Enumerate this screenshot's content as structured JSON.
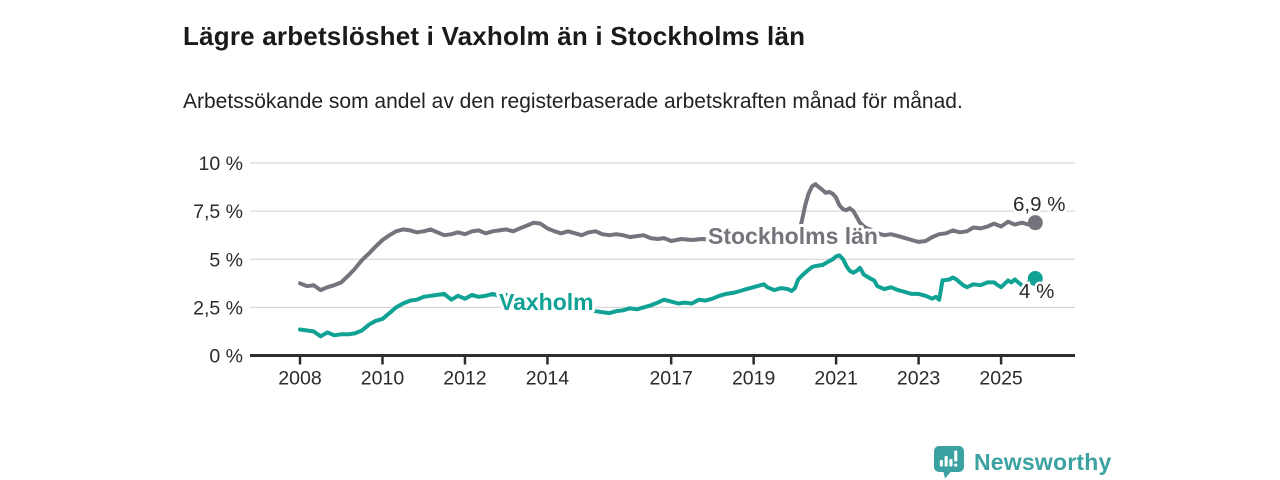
{
  "header": {
    "title": "Lägre arbetslöshet i Vaxholm än i Stockholms län",
    "subtitle": "Arbetssökande som andel av den registerbaserade arbetskraften månad för månad."
  },
  "footer": {
    "brand": "Newsworthy"
  },
  "colors": {
    "stockholm_line": "#74747d",
    "vaxholm_line": "#10a294",
    "axis": "#2e2e2e",
    "grid": "#d8d8d8",
    "tick_text": "#2b2b2b",
    "annotation_text": "#2b2b2b",
    "brand_teal": "#3ba1a1"
  },
  "chart_data": {
    "type": "line",
    "title": "Lägre arbetslöshet i Vaxholm än i Stockholms län",
    "subtitle": "Arbetssökande som andel av den registerbaserade arbetskraften månad för månad.",
    "xlabel": "",
    "ylabel": "",
    "grid": "horizontal",
    "legend_position": "inline-labels",
    "ylim": [
      0,
      10
    ],
    "xlim_data": [
      2008.0,
      2025.83
    ],
    "y_ticks": [
      {
        "v": 0,
        "label": "0 %"
      },
      {
        "v": 2.5,
        "label": "2,5 %"
      },
      {
        "v": 5,
        "label": "5 %"
      },
      {
        "v": 7.5,
        "label": "7,5 %"
      },
      {
        "v": 10,
        "label": "10 %"
      }
    ],
    "x_ticks": [
      {
        "v": 2008,
        "label": "2008"
      },
      {
        "v": 2010,
        "label": "2010"
      },
      {
        "v": 2012,
        "label": "2012"
      },
      {
        "v": 2014,
        "label": "2014"
      },
      {
        "v": 2017,
        "label": "2017"
      },
      {
        "v": 2019,
        "label": "2019"
      },
      {
        "v": 2021,
        "label": "2021"
      },
      {
        "v": 2023,
        "label": "2023"
      },
      {
        "v": 2025,
        "label": "2025"
      }
    ],
    "series": [
      {
        "name": "Stockholms län",
        "color": "#74747d",
        "end_label": "6,9 %",
        "last_value": 6.9,
        "points": [
          [
            2008.0,
            3.75
          ],
          [
            2008.17,
            3.6
          ],
          [
            2008.33,
            3.65
          ],
          [
            2008.5,
            3.4
          ],
          [
            2008.67,
            3.55
          ],
          [
            2008.83,
            3.65
          ],
          [
            2009.0,
            3.8
          ],
          [
            2009.17,
            4.15
          ],
          [
            2009.33,
            4.5
          ],
          [
            2009.5,
            4.95
          ],
          [
            2009.67,
            5.3
          ],
          [
            2009.83,
            5.65
          ],
          [
            2010.0,
            6.0
          ],
          [
            2010.17,
            6.25
          ],
          [
            2010.33,
            6.45
          ],
          [
            2010.5,
            6.55
          ],
          [
            2010.67,
            6.5
          ],
          [
            2010.83,
            6.4
          ],
          [
            2011.0,
            6.45
          ],
          [
            2011.17,
            6.55
          ],
          [
            2011.33,
            6.4
          ],
          [
            2011.5,
            6.25
          ],
          [
            2011.67,
            6.3
          ],
          [
            2011.83,
            6.4
          ],
          [
            2012.0,
            6.3
          ],
          [
            2012.17,
            6.45
          ],
          [
            2012.33,
            6.5
          ],
          [
            2012.5,
            6.35
          ],
          [
            2012.67,
            6.45
          ],
          [
            2012.83,
            6.5
          ],
          [
            2013.0,
            6.55
          ],
          [
            2013.17,
            6.45
          ],
          [
            2013.33,
            6.6
          ],
          [
            2013.5,
            6.75
          ],
          [
            2013.67,
            6.9
          ],
          [
            2013.83,
            6.85
          ],
          [
            2014.0,
            6.6
          ],
          [
            2014.17,
            6.45
          ],
          [
            2014.33,
            6.35
          ],
          [
            2014.5,
            6.45
          ],
          [
            2014.67,
            6.35
          ],
          [
            2014.83,
            6.25
          ],
          [
            2015.0,
            6.4
          ],
          [
            2015.17,
            6.45
          ],
          [
            2015.33,
            6.3
          ],
          [
            2015.5,
            6.25
          ],
          [
            2015.67,
            6.3
          ],
          [
            2015.83,
            6.25
          ],
          [
            2016.0,
            6.15
          ],
          [
            2016.17,
            6.2
          ],
          [
            2016.33,
            6.25
          ],
          [
            2016.5,
            6.1
          ],
          [
            2016.67,
            6.05
          ],
          [
            2016.83,
            6.1
          ],
          [
            2017.0,
            5.95
          ],
          [
            2017.25,
            6.05
          ],
          [
            2017.5,
            6.0
          ],
          [
            2017.75,
            6.05
          ],
          [
            2018.0,
            6.0
          ],
          [
            2018.25,
            5.95
          ],
          [
            2018.5,
            6.0
          ],
          [
            2018.75,
            5.95
          ],
          [
            2019.0,
            5.9
          ],
          [
            2019.17,
            5.95
          ],
          [
            2019.33,
            5.9
          ],
          [
            2019.5,
            5.85
          ],
          [
            2019.67,
            5.9
          ],
          [
            2019.83,
            5.95
          ],
          [
            2020.0,
            6.1
          ],
          [
            2020.08,
            6.3
          ],
          [
            2020.17,
            7.0
          ],
          [
            2020.25,
            7.8
          ],
          [
            2020.33,
            8.4
          ],
          [
            2020.42,
            8.8
          ],
          [
            2020.5,
            8.9
          ],
          [
            2020.58,
            8.75
          ],
          [
            2020.67,
            8.6
          ],
          [
            2020.75,
            8.45
          ],
          [
            2020.83,
            8.5
          ],
          [
            2020.92,
            8.4
          ],
          [
            2021.0,
            8.2
          ],
          [
            2021.08,
            7.8
          ],
          [
            2021.17,
            7.6
          ],
          [
            2021.25,
            7.55
          ],
          [
            2021.33,
            7.65
          ],
          [
            2021.42,
            7.5
          ],
          [
            2021.5,
            7.2
          ],
          [
            2021.58,
            6.9
          ],
          [
            2021.67,
            6.7
          ],
          [
            2021.75,
            6.6
          ],
          [
            2021.83,
            6.55
          ],
          [
            2021.92,
            6.45
          ],
          [
            2022.0,
            6.35
          ],
          [
            2022.17,
            6.25
          ],
          [
            2022.33,
            6.3
          ],
          [
            2022.5,
            6.2
          ],
          [
            2022.67,
            6.1
          ],
          [
            2022.83,
            6.0
          ],
          [
            2023.0,
            5.9
          ],
          [
            2023.17,
            5.95
          ],
          [
            2023.33,
            6.15
          ],
          [
            2023.5,
            6.3
          ],
          [
            2023.67,
            6.35
          ],
          [
            2023.83,
            6.5
          ],
          [
            2024.0,
            6.4
          ],
          [
            2024.17,
            6.45
          ],
          [
            2024.33,
            6.65
          ],
          [
            2024.5,
            6.6
          ],
          [
            2024.67,
            6.7
          ],
          [
            2024.83,
            6.85
          ],
          [
            2025.0,
            6.7
          ],
          [
            2025.17,
            6.95
          ],
          [
            2025.33,
            6.8
          ],
          [
            2025.5,
            6.9
          ],
          [
            2025.67,
            6.8
          ],
          [
            2025.83,
            6.9
          ]
        ]
      },
      {
        "name": "Vaxholm",
        "color": "#10a294",
        "end_label": "4 %",
        "last_value": 4.0,
        "points": [
          [
            2008.0,
            1.35
          ],
          [
            2008.17,
            1.3
          ],
          [
            2008.33,
            1.25
          ],
          [
            2008.5,
            1.0
          ],
          [
            2008.67,
            1.2
          ],
          [
            2008.83,
            1.05
          ],
          [
            2009.0,
            1.1
          ],
          [
            2009.17,
            1.1
          ],
          [
            2009.33,
            1.15
          ],
          [
            2009.5,
            1.3
          ],
          [
            2009.67,
            1.6
          ],
          [
            2009.83,
            1.8
          ],
          [
            2010.0,
            1.9
          ],
          [
            2010.17,
            2.2
          ],
          [
            2010.33,
            2.5
          ],
          [
            2010.5,
            2.7
          ],
          [
            2010.67,
            2.85
          ],
          [
            2010.83,
            2.9
          ],
          [
            2011.0,
            3.05
          ],
          [
            2011.17,
            3.1
          ],
          [
            2011.33,
            3.15
          ],
          [
            2011.5,
            3.2
          ],
          [
            2011.67,
            2.9
          ],
          [
            2011.83,
            3.1
          ],
          [
            2012.0,
            2.95
          ],
          [
            2012.17,
            3.15
          ],
          [
            2012.33,
            3.05
          ],
          [
            2012.5,
            3.1
          ],
          [
            2012.67,
            3.2
          ],
          [
            2012.83,
            3.1
          ],
          [
            2013.0,
            3.15
          ],
          [
            2013.17,
            3.05
          ],
          [
            2013.33,
            2.9
          ],
          [
            2013.5,
            2.7
          ],
          [
            2013.67,
            2.6
          ],
          [
            2013.83,
            2.7
          ],
          [
            2014.0,
            2.6
          ],
          [
            2014.17,
            2.5
          ],
          [
            2014.33,
            2.45
          ],
          [
            2014.5,
            2.4
          ],
          [
            2014.67,
            2.45
          ],
          [
            2014.83,
            2.35
          ],
          [
            2015.0,
            2.4
          ],
          [
            2015.17,
            2.3
          ],
          [
            2015.33,
            2.25
          ],
          [
            2015.5,
            2.2
          ],
          [
            2015.67,
            2.3
          ],
          [
            2015.83,
            2.35
          ],
          [
            2016.0,
            2.45
          ],
          [
            2016.17,
            2.4
          ],
          [
            2016.33,
            2.5
          ],
          [
            2016.5,
            2.6
          ],
          [
            2016.67,
            2.75
          ],
          [
            2016.83,
            2.9
          ],
          [
            2017.0,
            2.8
          ],
          [
            2017.17,
            2.7
          ],
          [
            2017.33,
            2.75
          ],
          [
            2017.5,
            2.7
          ],
          [
            2017.67,
            2.9
          ],
          [
            2017.83,
            2.85
          ],
          [
            2018.0,
            2.95
          ],
          [
            2018.17,
            3.1
          ],
          [
            2018.33,
            3.2
          ],
          [
            2018.5,
            3.25
          ],
          [
            2018.67,
            3.35
          ],
          [
            2018.83,
            3.45
          ],
          [
            2019.0,
            3.55
          ],
          [
            2019.17,
            3.65
          ],
          [
            2019.25,
            3.7
          ],
          [
            2019.33,
            3.55
          ],
          [
            2019.5,
            3.4
          ],
          [
            2019.67,
            3.5
          ],
          [
            2019.83,
            3.45
          ],
          [
            2019.92,
            3.35
          ],
          [
            2020.0,
            3.5
          ],
          [
            2020.08,
            3.95
          ],
          [
            2020.17,
            4.15
          ],
          [
            2020.33,
            4.45
          ],
          [
            2020.42,
            4.6
          ],
          [
            2020.5,
            4.65
          ],
          [
            2020.67,
            4.7
          ],
          [
            2020.75,
            4.8
          ],
          [
            2020.83,
            4.9
          ],
          [
            2020.92,
            5.0
          ],
          [
            2021.0,
            5.15
          ],
          [
            2021.08,
            5.2
          ],
          [
            2021.17,
            5.0
          ],
          [
            2021.25,
            4.65
          ],
          [
            2021.33,
            4.4
          ],
          [
            2021.42,
            4.3
          ],
          [
            2021.5,
            4.4
          ],
          [
            2021.58,
            4.55
          ],
          [
            2021.67,
            4.2
          ],
          [
            2021.75,
            4.1
          ],
          [
            2021.83,
            4.0
          ],
          [
            2021.92,
            3.9
          ],
          [
            2022.0,
            3.6
          ],
          [
            2022.17,
            3.45
          ],
          [
            2022.33,
            3.55
          ],
          [
            2022.5,
            3.4
          ],
          [
            2022.67,
            3.3
          ],
          [
            2022.83,
            3.2
          ],
          [
            2023.0,
            3.2
          ],
          [
            2023.17,
            3.1
          ],
          [
            2023.33,
            2.95
          ],
          [
            2023.42,
            3.05
          ],
          [
            2023.5,
            2.9
          ],
          [
            2023.58,
            3.9
          ],
          [
            2023.75,
            3.95
          ],
          [
            2023.83,
            4.05
          ],
          [
            2023.92,
            3.95
          ],
          [
            2024.0,
            3.8
          ],
          [
            2024.08,
            3.65
          ],
          [
            2024.17,
            3.55
          ],
          [
            2024.33,
            3.7
          ],
          [
            2024.5,
            3.65
          ],
          [
            2024.67,
            3.8
          ],
          [
            2024.83,
            3.8
          ],
          [
            2024.92,
            3.65
          ],
          [
            2025.0,
            3.55
          ],
          [
            2025.17,
            3.9
          ],
          [
            2025.25,
            3.8
          ],
          [
            2025.33,
            3.95
          ],
          [
            2025.42,
            3.8
          ],
          [
            2025.5,
            3.65
          ],
          [
            2025.58,
            3.55
          ],
          [
            2025.67,
            3.8
          ],
          [
            2025.75,
            3.95
          ],
          [
            2025.83,
            4.0
          ]
        ]
      }
    ]
  }
}
